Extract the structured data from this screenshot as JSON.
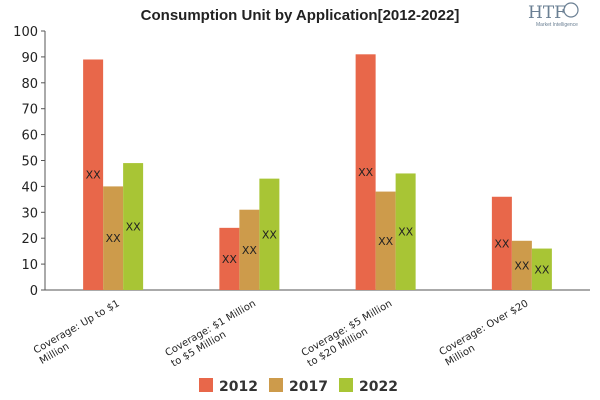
{
  "chart_data": {
    "type": "bar",
    "title": "Consumption Unit by  Application[2012-2022]",
    "categories": [
      [
        "Coverage: Up to $1",
        "Million"
      ],
      [
        "Coverage: $1 Million",
        "to $5 Million"
      ],
      [
        "Coverage: $5 Million",
        "to $20 Million"
      ],
      [
        "Coverage: Over $20",
        "Million"
      ]
    ],
    "series": [
      {
        "name": "2012",
        "color": "#e8674a",
        "values": [
          89,
          24,
          91,
          36
        ],
        "labels": [
          "XX",
          "XX",
          "XX",
          "XX"
        ]
      },
      {
        "name": "2017",
        "color": "#cd9b4b",
        "values": [
          40,
          31,
          38,
          19
        ],
        "labels": [
          "XX",
          "XX",
          "XX",
          "XX"
        ]
      },
      {
        "name": "2022",
        "color": "#a8c535",
        "values": [
          49,
          43,
          45,
          16
        ],
        "labels": [
          "XX",
          "XX",
          "XX",
          "XX"
        ]
      }
    ],
    "ylim": [
      0,
      100
    ],
    "yticks": [
      0,
      10,
      20,
      30,
      40,
      50,
      60,
      70,
      80,
      90,
      100
    ],
    "grid": false,
    "legend": "bottom"
  },
  "logo": {
    "text": "HTF",
    "subtitle": "Market Intelligence"
  }
}
